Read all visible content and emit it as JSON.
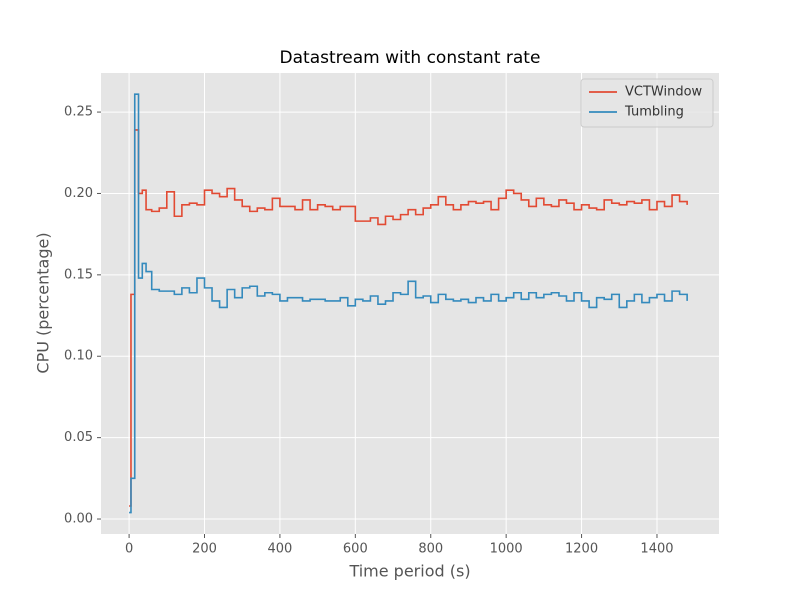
{
  "chart_data": {
    "type": "step",
    "title": "Datastream with constant rate",
    "x_label": "Time period (s)",
    "y_label": "CPU (percentage)",
    "x": [
      0,
      5,
      15,
      25,
      35,
      45,
      60,
      80,
      100,
      120,
      140,
      160,
      180,
      200,
      220,
      240,
      260,
      280,
      300,
      320,
      340,
      360,
      380,
      400,
      420,
      440,
      460,
      480,
      500,
      520,
      540,
      560,
      580,
      600,
      620,
      640,
      660,
      680,
      700,
      720,
      740,
      760,
      780,
      800,
      820,
      840,
      860,
      880,
      900,
      920,
      940,
      960,
      980,
      1000,
      1020,
      1040,
      1060,
      1080,
      1100,
      1120,
      1140,
      1160,
      1180,
      1200,
      1220,
      1240,
      1260,
      1280,
      1300,
      1320,
      1340,
      1360,
      1380,
      1400,
      1420,
      1440,
      1460,
      1480
    ],
    "series": [
      {
        "name": "VCTWindow",
        "color": "#E24A33",
        "values": [
          0.008,
          0.138,
          0.239,
          0.2,
          0.202,
          0.19,
          0.189,
          0.191,
          0.201,
          0.186,
          0.193,
          0.194,
          0.193,
          0.202,
          0.2,
          0.198,
          0.203,
          0.196,
          0.192,
          0.189,
          0.191,
          0.19,
          0.197,
          0.192,
          0.192,
          0.19,
          0.196,
          0.19,
          0.193,
          0.192,
          0.19,
          0.192,
          0.192,
          0.183,
          0.183,
          0.185,
          0.181,
          0.186,
          0.184,
          0.187,
          0.19,
          0.187,
          0.191,
          0.193,
          0.198,
          0.193,
          0.19,
          0.193,
          0.195,
          0.194,
          0.195,
          0.19,
          0.197,
          0.202,
          0.2,
          0.196,
          0.192,
          0.197,
          0.193,
          0.192,
          0.196,
          0.194,
          0.19,
          0.193,
          0.191,
          0.19,
          0.196,
          0.194,
          0.193,
          0.195,
          0.194,
          0.196,
          0.19,
          0.195,
          0.192,
          0.199,
          0.195,
          0.193
        ]
      },
      {
        "name": "Tumbling",
        "color": "#348ABD",
        "values": [
          0.004,
          0.025,
          0.261,
          0.148,
          0.157,
          0.152,
          0.141,
          0.14,
          0.14,
          0.138,
          0.142,
          0.139,
          0.148,
          0.142,
          0.134,
          0.13,
          0.141,
          0.136,
          0.142,
          0.143,
          0.137,
          0.139,
          0.138,
          0.134,
          0.136,
          0.136,
          0.134,
          0.135,
          0.135,
          0.134,
          0.134,
          0.136,
          0.131,
          0.135,
          0.134,
          0.137,
          0.132,
          0.134,
          0.139,
          0.138,
          0.146,
          0.136,
          0.137,
          0.133,
          0.138,
          0.135,
          0.134,
          0.135,
          0.133,
          0.136,
          0.134,
          0.138,
          0.134,
          0.136,
          0.139,
          0.135,
          0.139,
          0.136,
          0.138,
          0.139,
          0.137,
          0.134,
          0.139,
          0.134,
          0.13,
          0.136,
          0.135,
          0.138,
          0.13,
          0.134,
          0.138,
          0.133,
          0.136,
          0.138,
          0.134,
          0.14,
          0.138,
          0.134
        ]
      }
    ],
    "xlim": [
      -74.5,
      1564.5
    ],
    "ylim": [
      -0.0092,
      0.274
    ],
    "xticks": [
      0,
      200,
      400,
      600,
      800,
      1000,
      1200,
      1400
    ],
    "yticks": [
      {
        "value": 0,
        "label": "0.00"
      },
      0.05,
      {
        "value": 0.1,
        "label": "0.10"
      },
      0.15,
      {
        "value": 0.2,
        "label": "0.20"
      },
      0.25
    ],
    "grid": true,
    "legend": "upper right"
  }
}
